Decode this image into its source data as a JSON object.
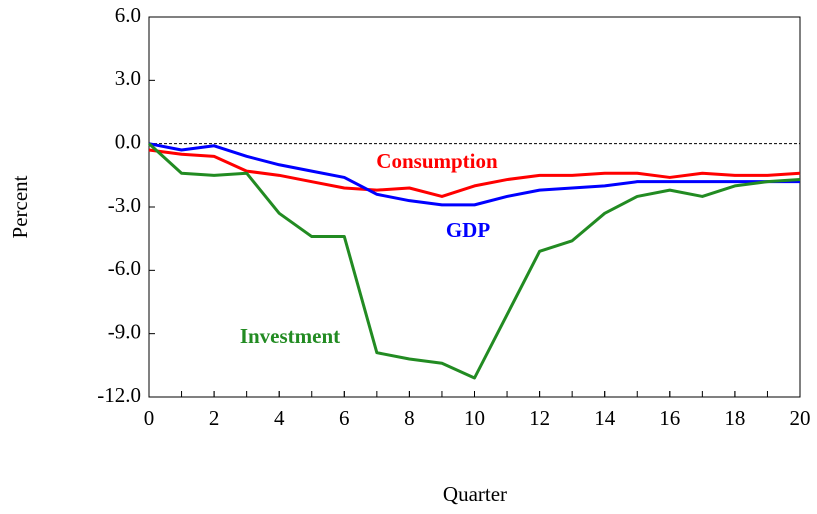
{
  "chart_data": {
    "type": "line",
    "x_label": "Quarter",
    "y_label": "Percent",
    "x": [
      0,
      1,
      2,
      3,
      4,
      5,
      6,
      7,
      8,
      9,
      10,
      11,
      12,
      13,
      14,
      15,
      16,
      17,
      18,
      19,
      20
    ],
    "xlim": [
      0,
      20
    ],
    "xticks": [
      0,
      2,
      4,
      6,
      8,
      10,
      12,
      14,
      16,
      18,
      20
    ],
    "ylim": [
      -12,
      6
    ],
    "yticks": [
      {
        "value": -12,
        "label": "-12.0"
      },
      {
        "value": -9,
        "label": "-9.0"
      },
      {
        "value": -6,
        "label": "-6.0"
      },
      {
        "value": -3,
        "label": "-3.0"
      },
      {
        "value": 0,
        "label": "0.0"
      },
      {
        "value": 3,
        "label": "3.0"
      },
      {
        "value": 6,
        "label": "6.0"
      }
    ],
    "series": [
      {
        "name": "Consumption",
        "color": "#ff0000",
        "values": [
          -0.3,
          -0.5,
          -0.6,
          -1.3,
          -1.5,
          -1.8,
          -2.1,
          -2.2,
          -2.1,
          -2.5,
          -2.0,
          -1.7,
          -1.5,
          -1.5,
          -1.4,
          -1.4,
          -1.6,
          -1.4,
          -1.5,
          -1.5,
          -1.4
        ]
      },
      {
        "name": "GDP",
        "color": "#0000ff",
        "values": [
          0.0,
          -0.3,
          -0.1,
          -0.6,
          -1.0,
          -1.3,
          -1.6,
          -2.4,
          -2.7,
          -2.9,
          -2.9,
          -2.5,
          -2.2,
          -2.1,
          -2.0,
          -1.8,
          -1.8,
          -1.8,
          -1.8,
          -1.8,
          -1.8
        ]
      },
      {
        "name": "Investment",
        "color": "#228b22",
        "values": [
          0.0,
          -1.4,
          -1.5,
          -1.4,
          -3.3,
          -4.4,
          -4.4,
          -9.9,
          -10.2,
          -10.4,
          -11.1,
          -8.1,
          -5.1,
          -4.6,
          -3.3,
          -2.5,
          -2.2,
          -2.5,
          -2.0,
          -1.8,
          -1.7
        ]
      }
    ]
  }
}
